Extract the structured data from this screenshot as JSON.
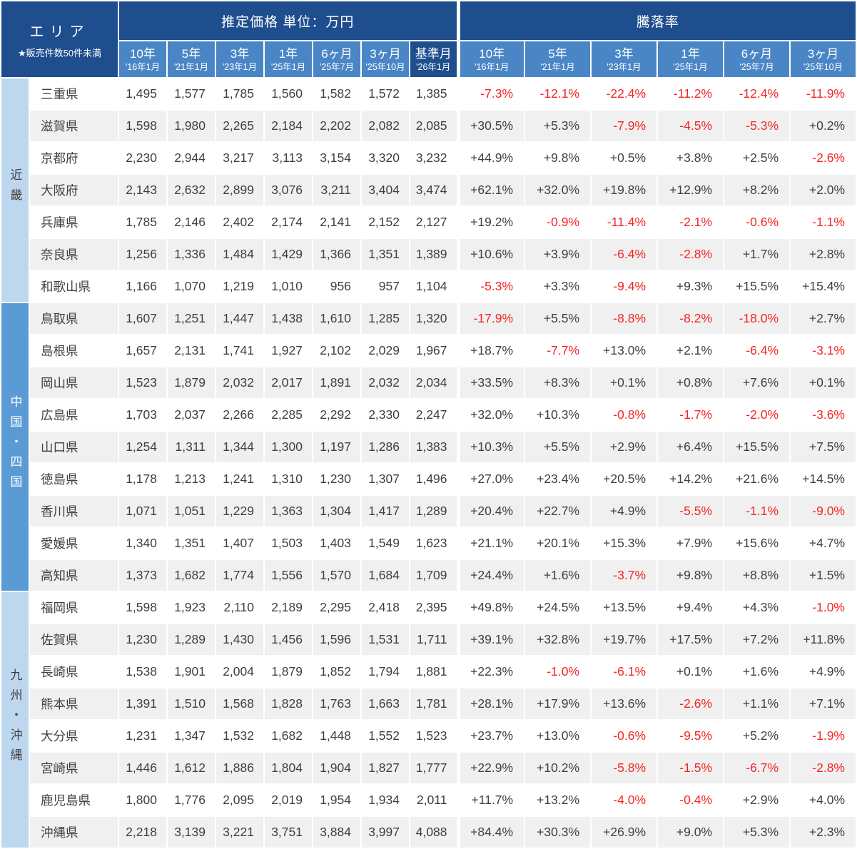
{
  "colors": {
    "header_dark": "#1f4e8e",
    "header_mid": "#4a86c6",
    "region_light": "#bdd7ee",
    "region_mid": "#5b9bd5",
    "stripe": "#f0f0f0",
    "negative_red": "#f52525",
    "text_dark": "#3f3f3f"
  },
  "chart_data": {
    "type": "table",
    "corner": {
      "title": "エリア",
      "note": "★販売件数50件未満"
    },
    "groups": [
      {
        "label": "推定価格 単位：万円",
        "columns": [
          {
            "period": "10年",
            "date": "'16年1月"
          },
          {
            "period": "5年",
            "date": "'21年1月"
          },
          {
            "period": "3年",
            "date": "'23年1月"
          },
          {
            "period": "1年",
            "date": "'25年1月"
          },
          {
            "period": "6ヶ月",
            "date": "'25年7月"
          },
          {
            "period": "3ヶ月",
            "date": "'25年10月"
          },
          {
            "period": "基準月",
            "date": "'26年1月",
            "emphasis": true
          }
        ]
      },
      {
        "label": "騰落率",
        "columns": [
          {
            "period": "10年",
            "date": "'16年1月"
          },
          {
            "period": "5年",
            "date": "'21年1月"
          },
          {
            "period": "3年",
            "date": "'23年1月"
          },
          {
            "period": "1年",
            "date": "'25年1月"
          },
          {
            "period": "6ヶ月",
            "date": "'25年7月"
          },
          {
            "period": "3ヶ月",
            "date": "'25年10月"
          }
        ]
      }
    ],
    "regions": [
      {
        "name": "近畿",
        "rows": [
          {
            "prefecture": "三重県",
            "prices": [
              "1,495",
              "1,577",
              "1,785",
              "1,560",
              "1,582",
              "1,572",
              "1,385"
            ],
            "rates": [
              "-7.3%",
              "-12.1%",
              "-22.4%",
              "-11.2%",
              "-12.4%",
              "-11.9%"
            ]
          },
          {
            "prefecture": "滋賀県",
            "prices": [
              "1,598",
              "1,980",
              "2,265",
              "2,184",
              "2,202",
              "2,082",
              "2,085"
            ],
            "rates": [
              "+30.5%",
              "+5.3%",
              "-7.9%",
              "-4.5%",
              "-5.3%",
              "+0.2%"
            ]
          },
          {
            "prefecture": "京都府",
            "prices": [
              "2,230",
              "2,944",
              "3,217",
              "3,113",
              "3,154",
              "3,320",
              "3,232"
            ],
            "rates": [
              "+44.9%",
              "+9.8%",
              "+0.5%",
              "+3.8%",
              "+2.5%",
              "-2.6%"
            ]
          },
          {
            "prefecture": "大阪府",
            "prices": [
              "2,143",
              "2,632",
              "2,899",
              "3,076",
              "3,211",
              "3,404",
              "3,474"
            ],
            "rates": [
              "+62.1%",
              "+32.0%",
              "+19.8%",
              "+12.9%",
              "+8.2%",
              "+2.0%"
            ]
          },
          {
            "prefecture": "兵庫県",
            "prices": [
              "1,785",
              "2,146",
              "2,402",
              "2,174",
              "2,141",
              "2,152",
              "2,127"
            ],
            "rates": [
              "+19.2%",
              "-0.9%",
              "-11.4%",
              "-2.1%",
              "-0.6%",
              "-1.1%"
            ]
          },
          {
            "prefecture": "奈良県",
            "prices": [
              "1,256",
              "1,336",
              "1,484",
              "1,429",
              "1,366",
              "1,351",
              "1,389"
            ],
            "rates": [
              "+10.6%",
              "+3.9%",
              "-6.4%",
              "-2.8%",
              "+1.7%",
              "+2.8%"
            ]
          },
          {
            "prefecture": "和歌山県",
            "prices": [
              "1,166",
              "1,070",
              "1,219",
              "1,010",
              "956",
              "957",
              "1,104"
            ],
            "rates": [
              "-5.3%",
              "+3.3%",
              "-9.4%",
              "+9.3%",
              "+15.5%",
              "+15.4%"
            ]
          }
        ]
      },
      {
        "name": "中国・四国",
        "rows": [
          {
            "prefecture": "鳥取県",
            "prices": [
              "1,607",
              "1,251",
              "1,447",
              "1,438",
              "1,610",
              "1,285",
              "1,320"
            ],
            "rates": [
              "-17.9%",
              "+5.5%",
              "-8.8%",
              "-8.2%",
              "-18.0%",
              "+2.7%"
            ]
          },
          {
            "prefecture": "島根県",
            "prices": [
              "1,657",
              "2,131",
              "1,741",
              "1,927",
              "2,102",
              "2,029",
              "1,967"
            ],
            "rates": [
              "+18.7%",
              "-7.7%",
              "+13.0%",
              "+2.1%",
              "-6.4%",
              "-3.1%"
            ]
          },
          {
            "prefecture": "岡山県",
            "prices": [
              "1,523",
              "1,879",
              "2,032",
              "2,017",
              "1,891",
              "2,032",
              "2,034"
            ],
            "rates": [
              "+33.5%",
              "+8.3%",
              "+0.1%",
              "+0.8%",
              "+7.6%",
              "+0.1%"
            ]
          },
          {
            "prefecture": "広島県",
            "prices": [
              "1,703",
              "2,037",
              "2,266",
              "2,285",
              "2,292",
              "2,330",
              "2,247"
            ],
            "rates": [
              "+32.0%",
              "+10.3%",
              "-0.8%",
              "-1.7%",
              "-2.0%",
              "-3.6%"
            ]
          },
          {
            "prefecture": "山口県",
            "prices": [
              "1,254",
              "1,311",
              "1,344",
              "1,300",
              "1,197",
              "1,286",
              "1,383"
            ],
            "rates": [
              "+10.3%",
              "+5.5%",
              "+2.9%",
              "+6.4%",
              "+15.5%",
              "+7.5%"
            ]
          },
          {
            "prefecture": "徳島県",
            "prices": [
              "1,178",
              "1,213",
              "1,241",
              "1,310",
              "1,230",
              "1,307",
              "1,496"
            ],
            "rates": [
              "+27.0%",
              "+23.4%",
              "+20.5%",
              "+14.2%",
              "+21.6%",
              "+14.5%"
            ]
          },
          {
            "prefecture": "香川県",
            "prices": [
              "1,071",
              "1,051",
              "1,229",
              "1,363",
              "1,304",
              "1,417",
              "1,289"
            ],
            "rates": [
              "+20.4%",
              "+22.7%",
              "+4.9%",
              "-5.5%",
              "-1.1%",
              "-9.0%"
            ]
          },
          {
            "prefecture": "愛媛県",
            "prices": [
              "1,340",
              "1,351",
              "1,407",
              "1,503",
              "1,403",
              "1,549",
              "1,623"
            ],
            "rates": [
              "+21.1%",
              "+20.1%",
              "+15.3%",
              "+7.9%",
              "+15.6%",
              "+4.7%"
            ]
          },
          {
            "prefecture": "高知県",
            "prices": [
              "1,373",
              "1,682",
              "1,774",
              "1,556",
              "1,570",
              "1,684",
              "1,709"
            ],
            "rates": [
              "+24.4%",
              "+1.6%",
              "-3.7%",
              "+9.8%",
              "+8.8%",
              "+1.5%"
            ]
          }
        ]
      },
      {
        "name": "九州・沖縄",
        "rows": [
          {
            "prefecture": "福岡県",
            "prices": [
              "1,598",
              "1,923",
              "2,110",
              "2,189",
              "2,295",
              "2,418",
              "2,395"
            ],
            "rates": [
              "+49.8%",
              "+24.5%",
              "+13.5%",
              "+9.4%",
              "+4.3%",
              "-1.0%"
            ]
          },
          {
            "prefecture": "佐賀県",
            "prices": [
              "1,230",
              "1,289",
              "1,430",
              "1,456",
              "1,596",
              "1,531",
              "1,711"
            ],
            "rates": [
              "+39.1%",
              "+32.8%",
              "+19.7%",
              "+17.5%",
              "+7.2%",
              "+11.8%"
            ]
          },
          {
            "prefecture": "長崎県",
            "prices": [
              "1,538",
              "1,901",
              "2,004",
              "1,879",
              "1,852",
              "1,794",
              "1,881"
            ],
            "rates": [
              "+22.3%",
              "-1.0%",
              "-6.1%",
              "+0.1%",
              "+1.6%",
              "+4.9%"
            ]
          },
          {
            "prefecture": "熊本県",
            "prices": [
              "1,391",
              "1,510",
              "1,568",
              "1,828",
              "1,763",
              "1,663",
              "1,781"
            ],
            "rates": [
              "+28.1%",
              "+17.9%",
              "+13.6%",
              "-2.6%",
              "+1.1%",
              "+7.1%"
            ]
          },
          {
            "prefecture": "大分県",
            "prices": [
              "1,231",
              "1,347",
              "1,532",
              "1,682",
              "1,448",
              "1,552",
              "1,523"
            ],
            "rates": [
              "+23.7%",
              "+13.0%",
              "-0.6%",
              "-9.5%",
              "+5.2%",
              "-1.9%"
            ]
          },
          {
            "prefecture": "宮崎県",
            "prices": [
              "1,446",
              "1,612",
              "1,886",
              "1,804",
              "1,904",
              "1,827",
              "1,777"
            ],
            "rates": [
              "+22.9%",
              "+10.2%",
              "-5.8%",
              "-1.5%",
              "-6.7%",
              "-2.8%"
            ]
          },
          {
            "prefecture": "鹿児島県",
            "prices": [
              "1,800",
              "1,776",
              "2,095",
              "2,019",
              "1,954",
              "1,934",
              "2,011"
            ],
            "rates": [
              "+11.7%",
              "+13.2%",
              "-4.0%",
              "-0.4%",
              "+2.9%",
              "+4.0%"
            ]
          },
          {
            "prefecture": "沖縄県",
            "prices": [
              "2,218",
              "3,139",
              "3,221",
              "3,751",
              "3,884",
              "3,997",
              "4,088"
            ],
            "rates": [
              "+84.4%",
              "+30.3%",
              "+26.9%",
              "+9.0%",
              "+5.3%",
              "+2.3%"
            ]
          }
        ]
      }
    ]
  }
}
